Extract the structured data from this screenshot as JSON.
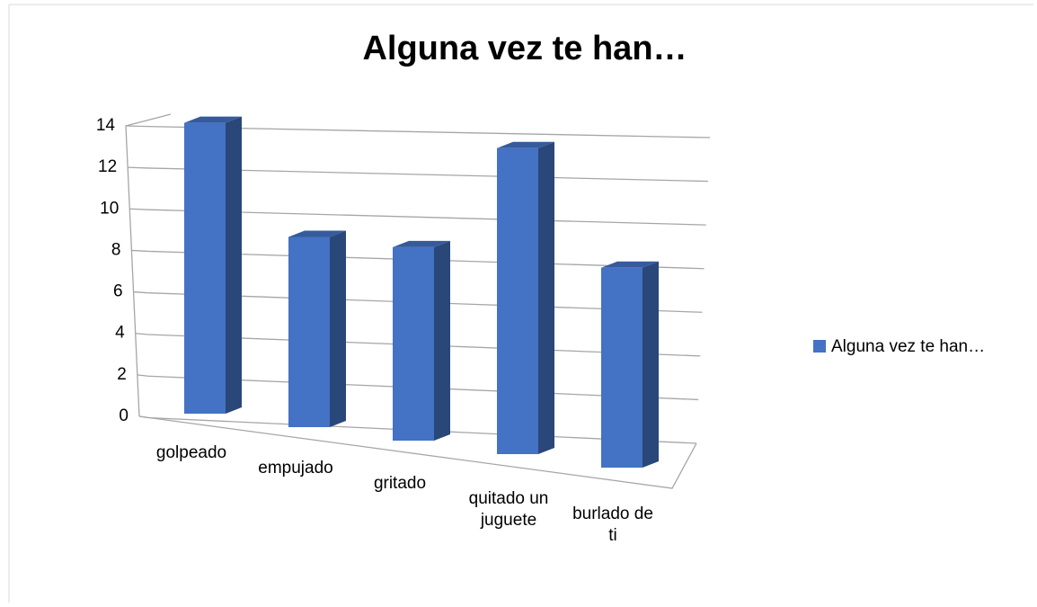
{
  "chart_data": {
    "type": "bar3d",
    "title": "Alguna vez te han…",
    "categories": [
      "golpeado",
      "empujado",
      "gritado",
      "quitado un juguete",
      "burlado de ti"
    ],
    "series": [
      {
        "name": "Alguna vez te han…",
        "color": "#4472c4",
        "values": [
          14,
          9,
          9,
          14,
          9
        ]
      }
    ],
    "ylim": [
      0,
      14
    ],
    "yticks": [
      0,
      2,
      4,
      6,
      8,
      10,
      12,
      14
    ],
    "grid": true,
    "legend": "right"
  }
}
